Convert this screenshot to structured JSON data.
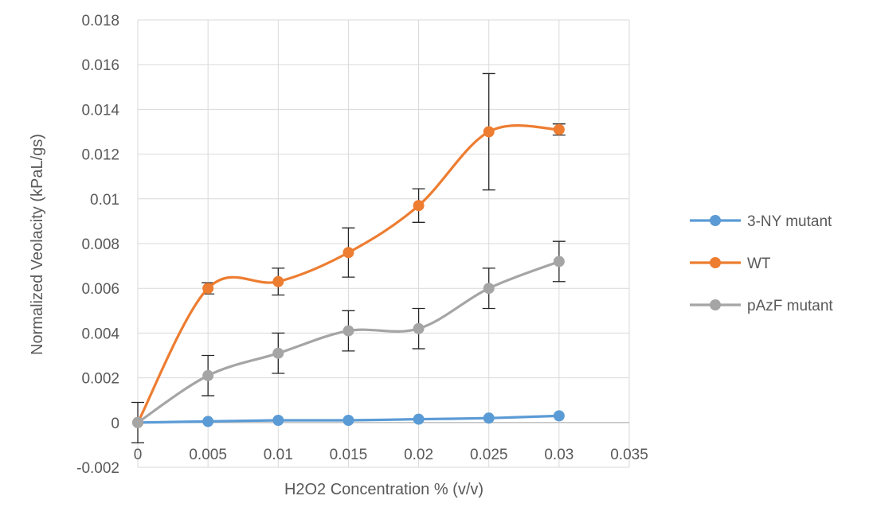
{
  "chart_data": {
    "type": "line",
    "title": "",
    "xlabel": "H2O2 Concentration % (v/v)",
    "ylabel": "Normalized Veolacity (kPaL/gs)",
    "xlim": [
      0,
      0.035
    ],
    "ylim": [
      -0.002,
      0.018
    ],
    "x_ticks": [
      "0",
      "0.005",
      "0.01",
      "0.015",
      "0.02",
      "0.025",
      "0.03",
      "0.035"
    ],
    "y_ticks": [
      "-0.002",
      "0",
      "0.002",
      "0.004",
      "0.006",
      "0.008",
      "0.01",
      "0.012",
      "0.014",
      "0.016",
      "0.018"
    ],
    "grid": "vertical and horizontal major gridlines",
    "legend_position": "right",
    "smooth_lines": true,
    "x": [
      0,
      0.005,
      0.01,
      0.015,
      0.02,
      0.025,
      0.03
    ],
    "series": [
      {
        "name": "3-NY mutant",
        "color": "#5b9bd5",
        "values": [
          0,
          5e-05,
          0.0001,
          0.0001,
          0.00015,
          0.0002,
          0.0003
        ],
        "errors": [
          0.0009,
          0,
          0,
          0,
          0,
          0,
          0
        ]
      },
      {
        "name": "WT",
        "color": "#ed7d31",
        "values": [
          0,
          0.006,
          0.0063,
          0.0076,
          0.0097,
          0.013,
          0.0131
        ],
        "errors": [
          0,
          0.00025,
          0.0006,
          0.0011,
          0.00075,
          0.0026,
          0.00025
        ]
      },
      {
        "name": "pAzF mutant",
        "color": "#a5a5a5",
        "values": [
          0,
          0.0021,
          0.0031,
          0.0041,
          0.0042,
          0.006,
          0.0072
        ],
        "errors": [
          0,
          0.0009,
          0.0009,
          0.0009,
          0.0009,
          0.0009,
          0.0009
        ]
      }
    ]
  }
}
